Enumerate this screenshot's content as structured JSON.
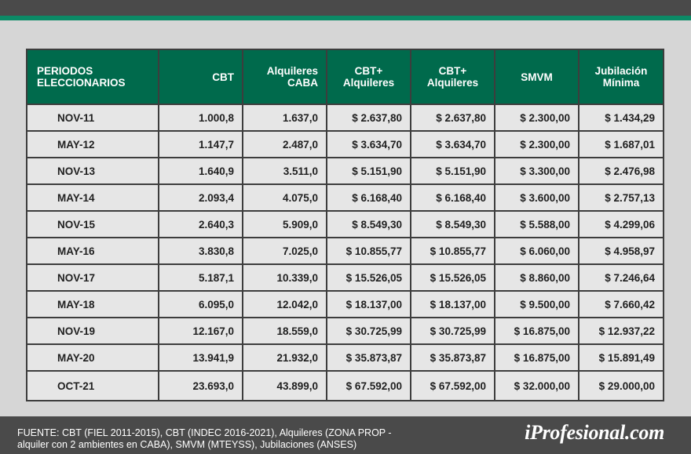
{
  "table": {
    "headers": [
      [
        "PERIODOS",
        "ELECCIONARIOS"
      ],
      [
        "CBT"
      ],
      [
        "Alquileres",
        "CABA"
      ],
      [
        "CBT+",
        "Alquileres"
      ],
      [
        "CBT+",
        "Alquileres"
      ],
      [
        "SMVM"
      ],
      [
        "Jubilación",
        "Mínima"
      ]
    ],
    "rows": [
      [
        "NOV-11",
        "1.000,8",
        "1.637,0",
        "$ 2.637,80",
        "$ 2.637,80",
        "$ 2.300,00",
        "$ 1.434,29"
      ],
      [
        "MAY-12",
        "1.147,7",
        "2.487,0",
        "$ 3.634,70",
        "$ 3.634,70",
        "$ 2.300,00",
        "$ 1.687,01"
      ],
      [
        "NOV-13",
        "1.640,9",
        "3.511,0",
        "$ 5.151,90",
        "$ 5.151,90",
        "$ 3.300,00",
        "$ 2.476,98"
      ],
      [
        "MAY-14",
        "2.093,4",
        "4.075,0",
        "$ 6.168,40",
        "$ 6.168,40",
        "$ 3.600,00",
        "$ 2.757,13"
      ],
      [
        "NOV-15",
        "2.640,3",
        "5.909,0",
        "$ 8.549,30",
        "$ 8.549,30",
        "$ 5.588,00",
        "$ 4.299,06"
      ],
      [
        "MAY-16",
        "3.830,8",
        "7.025,0",
        "$ 10.855,77",
        "$ 10.855,77",
        "$ 6.060,00",
        "$ 4.958,97"
      ],
      [
        "NOV-17",
        "5.187,1",
        "10.339,0",
        "$ 15.526,05",
        "$ 15.526,05",
        "$ 8.860,00",
        "$ 7.246,64"
      ],
      [
        "MAY-18",
        "6.095,0",
        "12.042,0",
        "$ 18.137,00",
        "$ 18.137,00",
        "$ 9.500,00",
        "$ 7.660,42"
      ],
      [
        "NOV-19",
        "12.167,0",
        "18.559,0",
        "$ 30.725,99",
        "$ 30.725,99",
        "$ 16.875,00",
        "$ 12.937,22"
      ],
      [
        "MAY-20",
        "13.941,9",
        "21.932,0",
        "$ 35.873,87",
        "$ 35.873,87",
        "$ 16.875,00",
        "$ 15.891,49"
      ],
      [
        "OCT-21",
        "23.693,0",
        "43.899,0",
        "$ 67.592,00",
        "$ 67.592,00",
        "$ 32.000,00",
        "$ 29.000,00"
      ]
    ]
  },
  "footer": {
    "source_line1": "FUENTE: CBT (FIEL 2011-2015), CBT (INDEC 2016-2021), Alquileres (ZONA PROP -",
    "source_line2": "alquiler con 2 ambientes en CABA), SMVM (MTEYSS), Jubilaciones (ANSES)",
    "logo": "iProfesional.com"
  },
  "colors": {
    "header_bg": "#006a4c",
    "accent": "#0b8a66",
    "bar": "#4a4a4a"
  }
}
